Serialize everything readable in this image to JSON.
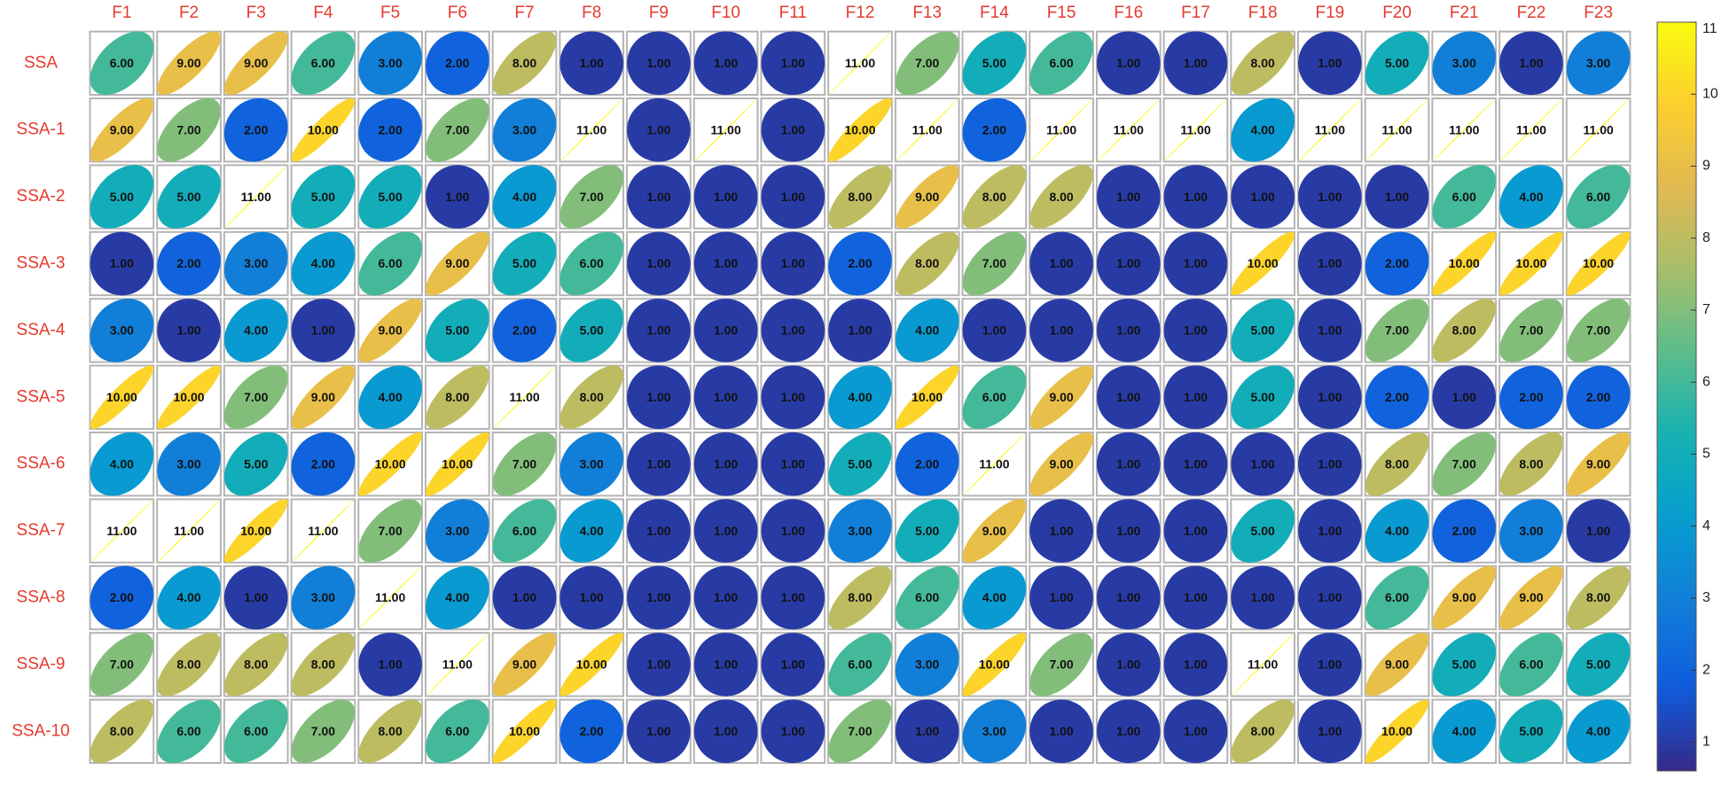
{
  "chart_data": {
    "type": "ellipse_matrix",
    "colormap": "parula",
    "x_categories": [
      "F1",
      "F2",
      "F3",
      "F4",
      "F5",
      "F6",
      "F7",
      "F8",
      "F9",
      "F10",
      "F11",
      "F12",
      "F13",
      "F14",
      "F15",
      "F16",
      "F17",
      "F18",
      "F19",
      "F20",
      "F21",
      "F22",
      "F23"
    ],
    "y_categories": [
      "SSA",
      "SSA-1",
      "SSA-2",
      "SSA-3",
      "SSA-4",
      "SSA-5",
      "SSA-6",
      "SSA-7",
      "SSA-8",
      "SSA-9",
      "SSA-10"
    ],
    "values": [
      [
        6,
        9,
        9,
        6,
        3,
        2,
        8,
        1,
        1,
        1,
        1,
        11,
        7,
        5,
        6,
        1,
        1,
        8,
        1,
        5,
        3,
        1,
        3
      ],
      [
        9,
        7,
        2,
        10,
        2,
        7,
        3,
        11,
        1,
        11,
        1,
        10,
        11,
        2,
        11,
        11,
        11,
        4,
        11,
        11,
        11,
        11,
        11
      ],
      [
        5,
        5,
        11,
        5,
        5,
        1,
        4,
        7,
        1,
        1,
        1,
        8,
        9,
        8,
        8,
        1,
        1,
        1,
        1,
        1,
        6,
        4,
        6
      ],
      [
        1,
        2,
        3,
        4,
        6,
        9,
        5,
        6,
        1,
        1,
        1,
        2,
        8,
        7,
        1,
        1,
        1,
        10,
        1,
        2,
        10,
        10,
        10
      ],
      [
        3,
        1,
        4,
        1,
        9,
        5,
        2,
        5,
        1,
        1,
        1,
        1,
        4,
        1,
        1,
        1,
        1,
        5,
        1,
        7,
        8,
        7,
        7
      ],
      [
        10,
        10,
        7,
        9,
        4,
        8,
        11,
        8,
        1,
        1,
        1,
        4,
        10,
        6,
        9,
        1,
        1,
        5,
        1,
        2,
        1,
        2,
        2
      ],
      [
        4,
        3,
        5,
        2,
        10,
        10,
        7,
        3,
        1,
        1,
        1,
        5,
        2,
        11,
        9,
        1,
        1,
        1,
        1,
        8,
        7,
        8,
        9
      ],
      [
        11,
        11,
        10,
        11,
        7,
        3,
        6,
        4,
        1,
        1,
        1,
        3,
        5,
        9,
        1,
        1,
        1,
        5,
        1,
        4,
        2,
        3,
        1
      ],
      [
        2,
        4,
        1,
        3,
        11,
        4,
        1,
        1,
        1,
        1,
        1,
        8,
        6,
        4,
        1,
        1,
        1,
        1,
        1,
        6,
        9,
        9,
        8
      ],
      [
        7,
        8,
        8,
        8,
        1,
        11,
        9,
        10,
        1,
        1,
        1,
        6,
        3,
        10,
        7,
        1,
        1,
        11,
        1,
        9,
        5,
        6,
        5
      ],
      [
        8,
        6,
        6,
        7,
        8,
        6,
        10,
        2,
        1,
        1,
        1,
        7,
        1,
        3,
        1,
        1,
        1,
        8,
        1,
        10,
        4,
        5,
        4
      ]
    ],
    "value_labels": [
      [
        "6.00",
        "9.00",
        "9.00",
        "6.00",
        "3.00",
        "2.00",
        "8.00",
        "1.00",
        "1.00",
        "1.00",
        "1.00",
        "11.00",
        "7.00",
        "5.00",
        "6.00",
        "1.00",
        "1.00",
        "8.00",
        "1.00",
        "5.00",
        "3.00",
        "1.00",
        "3.00"
      ],
      [
        "9.00",
        "7.00",
        "2.00",
        "10.00",
        "2.00",
        "7.00",
        "3.00",
        "11.00",
        "1.00",
        "11.00",
        "1.00",
        "10.00",
        "11.00",
        "2.00",
        "11.00",
        "11.00",
        "11.00",
        "4.00",
        "11.00",
        "11.00",
        "11.00",
        "11.00",
        "11.00"
      ],
      [
        "5.00",
        "5.00",
        "11.00",
        "5.00",
        "5.00",
        "1.00",
        "4.00",
        "7.00",
        "1.00",
        "1.00",
        "1.00",
        "8.00",
        "9.00",
        "8.00",
        "8.00",
        "1.00",
        "1.00",
        "1.00",
        "1.00",
        "1.00",
        "6.00",
        "4.00",
        "6.00"
      ],
      [
        "1.00",
        "2.00",
        "3.00",
        "4.00",
        "6.00",
        "9.00",
        "5.00",
        "6.00",
        "1.00",
        "1.00",
        "1.00",
        "2.00",
        "8.00",
        "7.00",
        "1.00",
        "1.00",
        "1.00",
        "10.00",
        "1.00",
        "2.00",
        "10.00",
        "10.00",
        "10.00"
      ],
      [
        "3.00",
        "1.00",
        "4.00",
        "1.00",
        "9.00",
        "5.00",
        "2.00",
        "5.00",
        "1.00",
        "1.00",
        "1.00",
        "1.00",
        "4.00",
        "1.00",
        "1.00",
        "1.00",
        "1.00",
        "5.00",
        "1.00",
        "7.00",
        "8.00",
        "7.00",
        "7.00"
      ],
      [
        "10.00",
        "10.00",
        "7.00",
        "9.00",
        "4.00",
        "8.00",
        "11.00",
        "8.00",
        "1.00",
        "1.00",
        "1.00",
        "4.00",
        "10.00",
        "6.00",
        "9.00",
        "1.00",
        "1.00",
        "5.00",
        "1.00",
        "2.00",
        "1.00",
        "2.00",
        "2.00"
      ],
      [
        "4.00",
        "3.00",
        "5.00",
        "2.00",
        "10.00",
        "10.00",
        "7.00",
        "3.00",
        "1.00",
        "1.00",
        "1.00",
        "5.00",
        "2.00",
        "11.00",
        "9.00",
        "1.00",
        "1.00",
        "1.00",
        "1.00",
        "8.00",
        "7.00",
        "8.00",
        "9.00"
      ],
      [
        "11.00",
        "11.00",
        "10.00",
        "11.00",
        "7.00",
        "3.00",
        "6.00",
        "4.00",
        "1.00",
        "1.00",
        "1.00",
        "3.00",
        "5.00",
        "9.00",
        "1.00",
        "1.00",
        "1.00",
        "5.00",
        "1.00",
        "4.00",
        "2.00",
        "3.00",
        "1.00"
      ],
      [
        "2.00",
        "4.00",
        "1.00",
        "3.00",
        "11.00",
        "4.00",
        "1.00",
        "1.00",
        "1.00",
        "1.00",
        "1.00",
        "8.00",
        "6.00",
        "4.00",
        "1.00",
        "1.00",
        "1.00",
        "1.00",
        "1.00",
        "6.00",
        "9.00",
        "9.00",
        "8.00"
      ],
      [
        "7.00",
        "8.00",
        "8.00",
        "8.00",
        "1.00",
        "11.00",
        "9.00",
        "10.00",
        "1.00",
        "1.00",
        "1.00",
        "6.00",
        "3.00",
        "10.00",
        "7.00",
        "1.00",
        "1.00",
        "11.00",
        "1.00",
        "9.00",
        "5.00",
        "6.00",
        "5.00"
      ],
      [
        "8.00",
        "6.00",
        "6.00",
        "7.00",
        "8.00",
        "6.00",
        "10.00",
        "2.00",
        "1.00",
        "1.00",
        "1.00",
        "7.00",
        "1.00",
        "3.00",
        "1.00",
        "1.00",
        "1.00",
        "8.00",
        "1.00",
        "10.00",
        "4.00",
        "5.00",
        "4.00"
      ]
    ],
    "colorbar": {
      "lim": [
        0.6,
        11
      ],
      "ticks": [
        1,
        2,
        3,
        4,
        5,
        6,
        7,
        8,
        9,
        10,
        11
      ]
    }
  }
}
